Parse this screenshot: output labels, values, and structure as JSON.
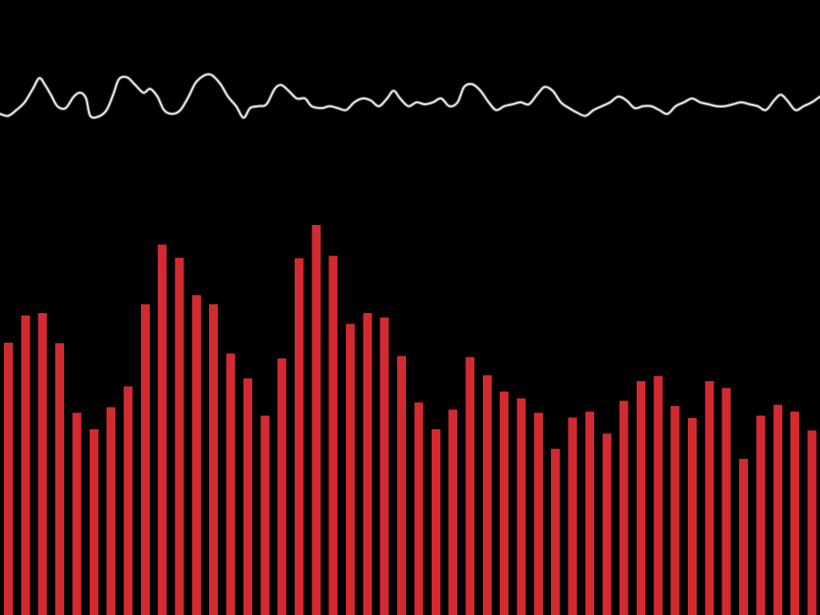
{
  "colors": {
    "background": "#000000",
    "bars": "#d32a31",
    "waveform": "#f2f2f2",
    "waveform_glow": "#8a8a8a"
  },
  "chart_data": [
    {
      "type": "line",
      "role": "waveform",
      "y_range": [
        -1,
        1
      ],
      "grid": false,
      "legend": "none",
      "points": [
        [
          0.0,
          -0.15
        ],
        [
          0.01,
          -0.2
        ],
        [
          0.02,
          -0.05
        ],
        [
          0.03,
          0.15
        ],
        [
          0.04,
          0.5
        ],
        [
          0.048,
          0.78
        ],
        [
          0.055,
          0.6
        ],
        [
          0.062,
          0.35
        ],
        [
          0.07,
          0.05
        ],
        [
          0.08,
          0.0
        ],
        [
          0.09,
          0.3
        ],
        [
          0.098,
          0.4
        ],
        [
          0.105,
          0.25
        ],
        [
          0.11,
          -0.2
        ],
        [
          0.12,
          -0.22
        ],
        [
          0.13,
          -0.05
        ],
        [
          0.138,
          0.35
        ],
        [
          0.145,
          0.75
        ],
        [
          0.155,
          0.8
        ],
        [
          0.165,
          0.6
        ],
        [
          0.175,
          0.4
        ],
        [
          0.183,
          0.5
        ],
        [
          0.192,
          0.3
        ],
        [
          0.2,
          -0.05
        ],
        [
          0.21,
          -0.15
        ],
        [
          0.22,
          -0.05
        ],
        [
          0.23,
          0.3
        ],
        [
          0.24,
          0.7
        ],
        [
          0.255,
          0.88
        ],
        [
          0.268,
          0.65
        ],
        [
          0.278,
          0.3
        ],
        [
          0.288,
          0.05
        ],
        [
          0.297,
          -0.25
        ],
        [
          0.305,
          0.0
        ],
        [
          0.315,
          0.05
        ],
        [
          0.325,
          0.1
        ],
        [
          0.335,
          0.5
        ],
        [
          0.343,
          0.6
        ],
        [
          0.352,
          0.45
        ],
        [
          0.362,
          0.25
        ],
        [
          0.372,
          0.25
        ],
        [
          0.38,
          0.05
        ],
        [
          0.392,
          0.0
        ],
        [
          0.402,
          0.05
        ],
        [
          0.412,
          0.0
        ],
        [
          0.422,
          -0.05
        ],
        [
          0.432,
          0.15
        ],
        [
          0.442,
          0.25
        ],
        [
          0.452,
          0.2
        ],
        [
          0.462,
          0.05
        ],
        [
          0.472,
          0.25
        ],
        [
          0.48,
          0.45
        ],
        [
          0.488,
          0.25
        ],
        [
          0.498,
          0.05
        ],
        [
          0.508,
          0.15
        ],
        [
          0.518,
          0.1
        ],
        [
          0.528,
          0.15
        ],
        [
          0.538,
          0.25
        ],
        [
          0.548,
          0.05
        ],
        [
          0.558,
          0.15
        ],
        [
          0.566,
          0.55
        ],
        [
          0.576,
          0.62
        ],
        [
          0.586,
          0.45
        ],
        [
          0.596,
          0.15
        ],
        [
          0.605,
          -0.05
        ],
        [
          0.615,
          0.05
        ],
        [
          0.625,
          0.1
        ],
        [
          0.635,
          0.15
        ],
        [
          0.645,
          0.1
        ],
        [
          0.655,
          0.35
        ],
        [
          0.664,
          0.55
        ],
        [
          0.674,
          0.45
        ],
        [
          0.684,
          0.15
        ],
        [
          0.694,
          0.0
        ],
        [
          0.704,
          -0.12
        ],
        [
          0.714,
          -0.2
        ],
        [
          0.724,
          -0.05
        ],
        [
          0.734,
          0.05
        ],
        [
          0.744,
          0.15
        ],
        [
          0.754,
          0.3
        ],
        [
          0.764,
          0.2
        ],
        [
          0.774,
          0.0
        ],
        [
          0.784,
          0.05
        ],
        [
          0.794,
          0.05
        ],
        [
          0.804,
          -0.05
        ],
        [
          0.814,
          -0.15
        ],
        [
          0.824,
          0.05
        ],
        [
          0.834,
          0.15
        ],
        [
          0.844,
          0.25
        ],
        [
          0.854,
          0.15
        ],
        [
          0.864,
          0.1
        ],
        [
          0.874,
          0.05
        ],
        [
          0.884,
          0.05
        ],
        [
          0.894,
          0.1
        ],
        [
          0.904,
          0.15
        ],
        [
          0.914,
          0.1
        ],
        [
          0.924,
          0.05
        ],
        [
          0.934,
          -0.05
        ],
        [
          0.944,
          0.2
        ],
        [
          0.952,
          0.35
        ],
        [
          0.96,
          0.2
        ],
        [
          0.97,
          -0.05
        ],
        [
          0.98,
          0.05
        ],
        [
          0.99,
          0.15
        ],
        [
          1.0,
          0.3
        ]
      ]
    },
    {
      "type": "bar",
      "role": "spectrum",
      "y_range": [
        0,
        1
      ],
      "grid": false,
      "legend": "none",
      "values": [
        0.443,
        0.487,
        0.491,
        0.442,
        0.329,
        0.302,
        0.338,
        0.372,
        0.505,
        0.602,
        0.581,
        0.52,
        0.505,
        0.425,
        0.385,
        0.324,
        0.417,
        0.58,
        0.634,
        0.584,
        0.473,
        0.491,
        0.484,
        0.421,
        0.346,
        0.302,
        0.334,
        0.419,
        0.39,
        0.363,
        0.352,
        0.329,
        0.27,
        0.321,
        0.331,
        0.295,
        0.348,
        0.38,
        0.389,
        0.34,
        0.32,
        0.38,
        0.369,
        0.254,
        0.324,
        0.342,
        0.331,
        0.3
      ]
    }
  ]
}
